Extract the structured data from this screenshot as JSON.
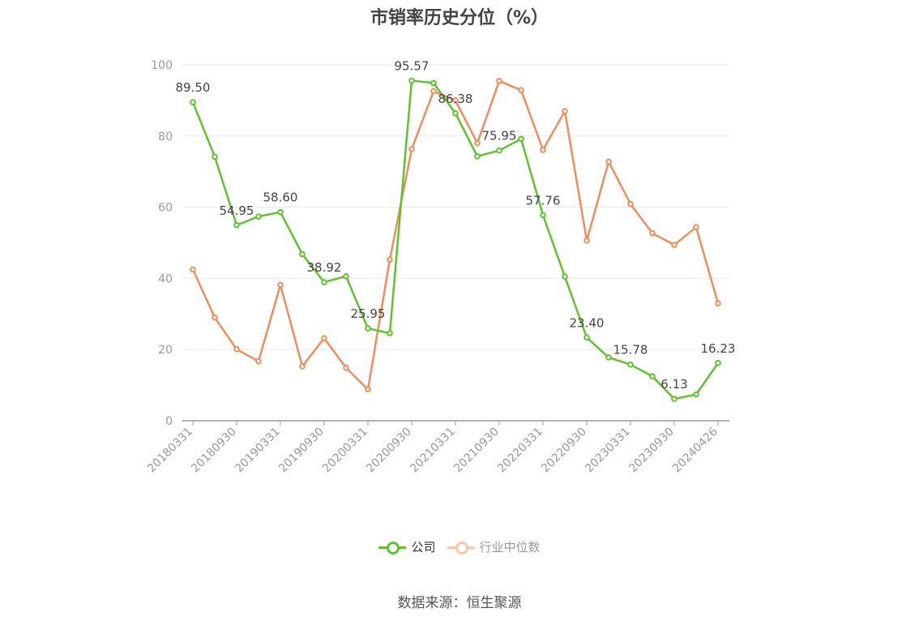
{
  "chart_data": {
    "type": "line",
    "title": "市销率历史分位（%）",
    "ylim": [
      0,
      100
    ],
    "yticks": [
      0,
      20,
      40,
      60,
      80,
      100
    ],
    "grid": true,
    "legend_position": "bottom",
    "x": [
      "20180331",
      "20180630",
      "20180930",
      "20181231",
      "20190331",
      "20190630",
      "20190930",
      "20191231",
      "20200331",
      "20200630",
      "20200930",
      "20201231",
      "20210331",
      "20210630",
      "20210930",
      "20211231",
      "20220331",
      "20220630",
      "20220930",
      "20221231",
      "20230331",
      "20230630",
      "20230930",
      "20231231",
      "20240426"
    ],
    "x_tick_labels": [
      "20180331",
      "20180930",
      "20190331",
      "20190930",
      "20200331",
      "20200930",
      "20210331",
      "20210930",
      "20220331",
      "20220930",
      "20230331",
      "20230930",
      "20240426"
    ],
    "series": [
      {
        "name": "公司",
        "color": "#5ec42d",
        "values": [
          89.5,
          74.2,
          54.95,
          57.4,
          58.6,
          46.8,
          38.92,
          40.6,
          25.95,
          24.6,
          95.57,
          94.9,
          86.38,
          74.3,
          75.95,
          79.2,
          57.76,
          40.5,
          23.4,
          17.8,
          15.78,
          12.5,
          6.13,
          7.4,
          16.23
        ],
        "labels": [
          "89.50",
          "",
          "54.95",
          "",
          "58.60",
          "",
          "38.92",
          "",
          "25.95",
          "",
          "95.57",
          "",
          "86.38",
          "",
          "75.95",
          "",
          "57.76",
          "",
          "23.40",
          "",
          "15.78",
          "",
          "6.13",
          "",
          "16.23"
        ]
      },
      {
        "name": "行业中位数",
        "color": "#f28c5a",
        "values": [
          42.5,
          29.0,
          20.1,
          16.7,
          38.2,
          15.3,
          23.2,
          14.9,
          8.8,
          45.3,
          76.3,
          92.6,
          90.0,
          78.0,
          95.5,
          92.9,
          76.1,
          87.0,
          50.6,
          72.8,
          60.9,
          52.7,
          49.4,
          54.4,
          33.0
        ]
      }
    ]
  },
  "source": "数据来源：恒生聚源"
}
